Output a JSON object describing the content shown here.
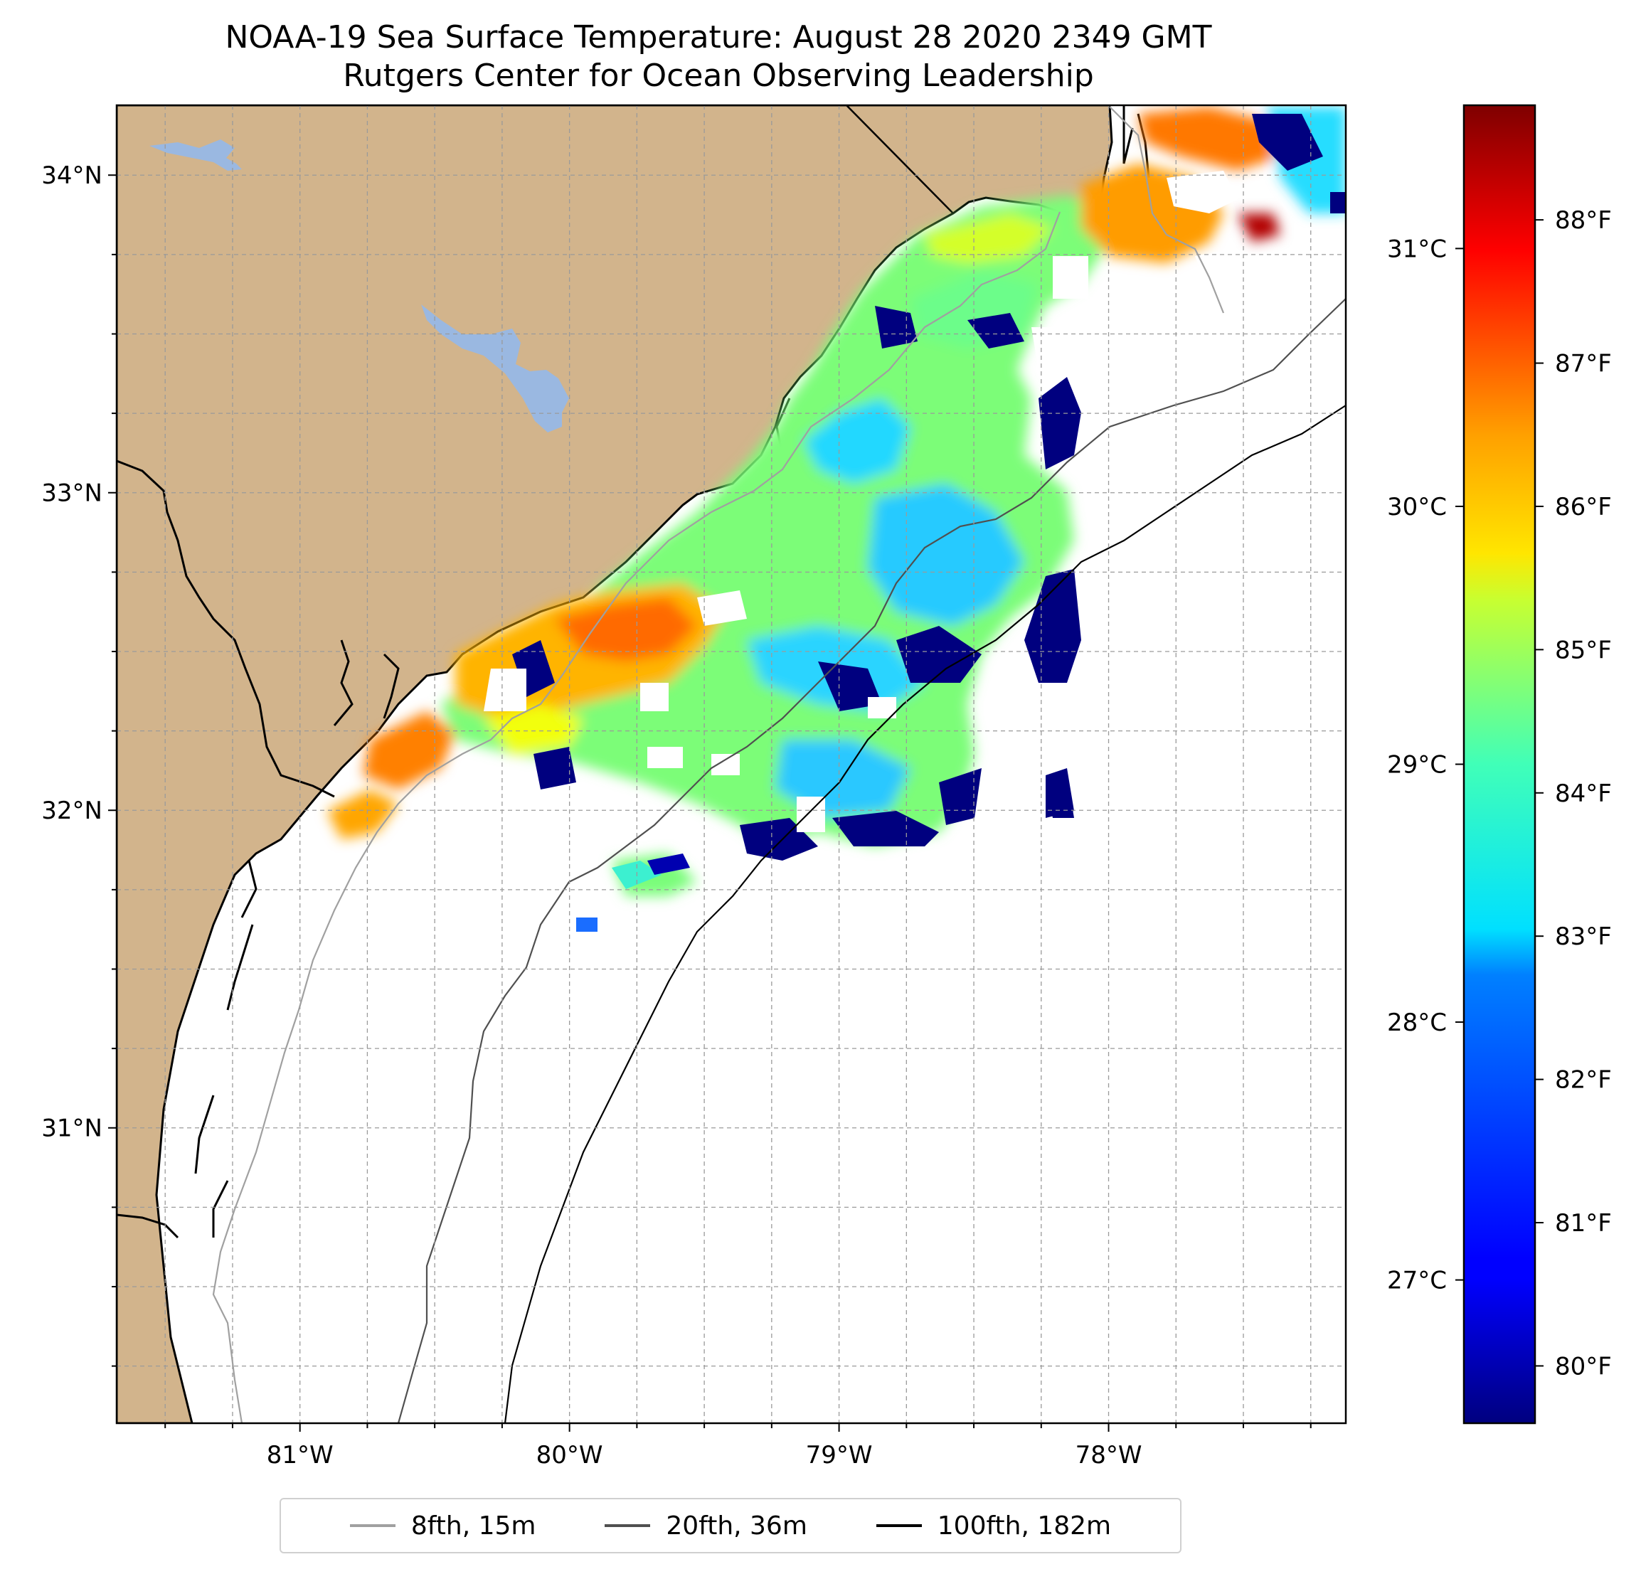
{
  "title": {
    "line1": "NOAA-19 Sea Surface Temperature: August 28 2020 2349 GMT",
    "line2": "Rutgers Center for Ocean Observing Leadership"
  },
  "map": {
    "lon_range": [
      -81.68,
      -77.12
    ],
    "lat_range": [
      30.07,
      34.22
    ],
    "lon_ticks": [
      {
        "value": -81,
        "label": "81°W"
      },
      {
        "value": -80,
        "label": "80°W"
      },
      {
        "value": -79,
        "label": "79°W"
      },
      {
        "value": -78,
        "label": "78°W"
      }
    ],
    "lat_ticks": [
      {
        "value": 31,
        "label": "31°N"
      },
      {
        "value": 32,
        "label": "32°N"
      },
      {
        "value": 33,
        "label": "33°N"
      },
      {
        "value": 34,
        "label": "34°N"
      }
    ],
    "minor_grid_deg": 0.25,
    "grid": true,
    "colors": {
      "land": "#d2b48c",
      "lakes": "#9ab8e1",
      "ocean_no_data": "#ffffff",
      "contour_8fth": "#a0a0a0",
      "contour_20fth": "#505050",
      "contour_100fth": "#000000"
    }
  },
  "colorbar": {
    "colormap": "jet",
    "fahrenheit_ticks": [
      {
        "value": 80,
        "label": "80°F"
      },
      {
        "value": 81,
        "label": "81°F"
      },
      {
        "value": 82,
        "label": "82°F"
      },
      {
        "value": 83,
        "label": "83°F"
      },
      {
        "value": 84,
        "label": "84°F"
      },
      {
        "value": 85,
        "label": "85°F"
      },
      {
        "value": 86,
        "label": "86°F"
      },
      {
        "value": 87,
        "label": "87°F"
      },
      {
        "value": 88,
        "label": "88°F"
      }
    ],
    "celsius_ticks": [
      {
        "value": 27,
        "label": "27°C"
      },
      {
        "value": 28,
        "label": "28°C"
      },
      {
        "value": 29,
        "label": "29°C"
      },
      {
        "value": 30,
        "label": "30°C"
      },
      {
        "value": 31,
        "label": "31°C"
      }
    ],
    "range_f": [
      79.6,
      88.8
    ]
  },
  "legend": {
    "items": [
      {
        "label": "8fth, 15m",
        "color": "#a0a0a0"
      },
      {
        "label": "20fth, 36m",
        "color": "#505050"
      },
      {
        "label": "100fth, 182m",
        "color": "#000000"
      }
    ]
  }
}
